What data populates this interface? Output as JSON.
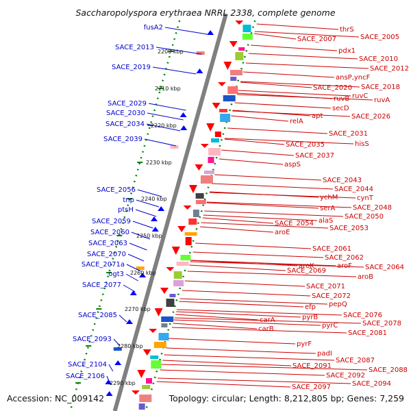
{
  "title": "Saccharopolyspora erythraea NRRL 2338, complete genome",
  "footer": {
    "accession": "Accession: NC_009142",
    "summary": "Topology: circular; Length: 8,212,805 bp; Genes: 7,259"
  },
  "colors": {
    "left_label": "#0000cc",
    "right_label": "#cc0000",
    "backbone": "#808080",
    "ticks": "#008000"
  },
  "kbp_ticks": [
    "2200 kbp",
    "2210 kbp",
    "2220 kbp",
    "2230 kbp",
    "2240 kbp",
    "2250 kbp",
    "2260 kbp",
    "2270 kbp",
    "2280 kbp",
    "2290 kbp"
  ],
  "left_genes": [
    "fusA2",
    "SACE_2013",
    "SACE_2019",
    "SACE_2029",
    "SACE_2030",
    "SACE_2034",
    "SACE_2039",
    "SACE_2056",
    "tnp",
    "ptsH",
    "SACE_2059",
    "SACE_2060",
    "SACE_2063",
    "SACE_2070",
    "SACE_2071a",
    "ogt3",
    "SACE_2077",
    "SACE_2085",
    "SACE_2093",
    "SACE_2104",
    "SACE_2106"
  ],
  "right_genes": [
    "thrS",
    "SACE_2005",
    "SACE_2007",
    "pdx1",
    "SACE_2010",
    "SACE_2012",
    "ansP,yncF",
    "SACE_2018",
    "SACE_2020",
    "ruvC",
    "ruvA",
    "ruvB",
    "secD",
    "apt",
    "SACE_2026",
    "relA",
    "SACE_2031",
    "hisS",
    "SACE_2035",
    "SACE_2037",
    "aspS",
    "SACE_2043",
    "SACE_2044",
    "ychM",
    "cynT",
    "SACE_2048",
    "serA",
    "SACE_2050",
    "alaS",
    "SACE_2054",
    "SACE_2053",
    "aroE",
    "SACE_2061",
    "SACE_2062",
    "aroK",
    "aroF",
    "SACE_2064",
    "SACE_2069",
    "aroB",
    "SACE_2071",
    "SACE_2072",
    "pepQ",
    "efp",
    "SACE_2076",
    "pyrB",
    "SACE_2078",
    "carA",
    "pyrC",
    "carB",
    "SACE_2081",
    "pyrF",
    "padI",
    "SACE_2087",
    "SACE_2091",
    "SACE_2088",
    "SACE_2092",
    "SACE_2094",
    "SACE_2097"
  ]
}
